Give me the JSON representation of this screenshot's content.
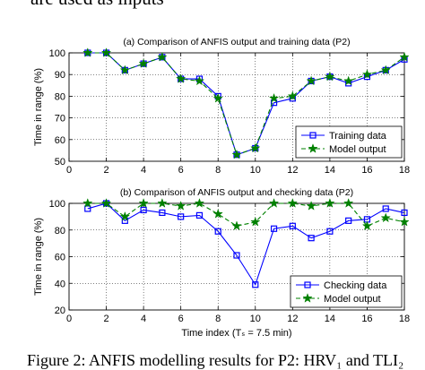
{
  "header_text": "are used as inputs",
  "caption": "Figure 2: ANFIS modelling results for P2: HRV₁ and TLI₂",
  "xlabel": "Time index (Tₛ = 7.5 min)",
  "chart_data": [
    {
      "type": "line",
      "title": "(a) Comparison of ANFIS output and training data (P2)",
      "ylabel": "Time in range (%)",
      "xlabel": "",
      "xlim": [
        0,
        18
      ],
      "ylim": [
        50,
        100
      ],
      "xticks": [
        0,
        2,
        4,
        6,
        8,
        10,
        12,
        14,
        16,
        18
      ],
      "yticks": [
        50,
        60,
        70,
        80,
        90,
        100
      ],
      "grid": true,
      "legend_position": "lower-right",
      "x": [
        1,
        2,
        3,
        4,
        5,
        6,
        7,
        8,
        9,
        10,
        11,
        12,
        13,
        14,
        15,
        16,
        17,
        18
      ],
      "series": [
        {
          "name": "Training data",
          "color": "#0000ff",
          "style": "solid",
          "marker": "square",
          "values": [
            100,
            100,
            92,
            95,
            98,
            88,
            88,
            80,
            53,
            56,
            77,
            79,
            87,
            89,
            86,
            89,
            92,
            97
          ]
        },
        {
          "name": "Model output",
          "color": "#008000",
          "style": "dashed",
          "marker": "star",
          "values": [
            100,
            100,
            92,
            95,
            98,
            88,
            87,
            79,
            53,
            56,
            79,
            80,
            87,
            89,
            87,
            90,
            92,
            98
          ]
        }
      ]
    },
    {
      "type": "line",
      "title": "(b) Comparison of ANFIS output and checking data (P2)",
      "ylabel": "Time in range (%)",
      "xlabel": "Time index (Tₛ = 7.5 min)",
      "xlim": [
        0,
        18
      ],
      "ylim": [
        20,
        100
      ],
      "xticks": [
        0,
        2,
        4,
        6,
        8,
        10,
        12,
        14,
        16,
        18
      ],
      "yticks": [
        20,
        40,
        60,
        80,
        100
      ],
      "grid": true,
      "legend_position": "lower-right",
      "x": [
        1,
        2,
        3,
        4,
        5,
        6,
        7,
        8,
        9,
        10,
        11,
        12,
        13,
        14,
        15,
        16,
        17,
        18
      ],
      "series": [
        {
          "name": "Checking data",
          "color": "#0000ff",
          "style": "solid",
          "marker": "square",
          "values": [
            96,
            100,
            87,
            95,
            93,
            90,
            91,
            79,
            61,
            39,
            81,
            83,
            74,
            79,
            87,
            88,
            96,
            93
          ]
        },
        {
          "name": "Model output",
          "color": "#008000",
          "style": "dashed",
          "marker": "star",
          "values": [
            100,
            100,
            90,
            100,
            100,
            98,
            100,
            92,
            83,
            86,
            100,
            100,
            98,
            100,
            100,
            83,
            89,
            86
          ]
        }
      ]
    }
  ]
}
